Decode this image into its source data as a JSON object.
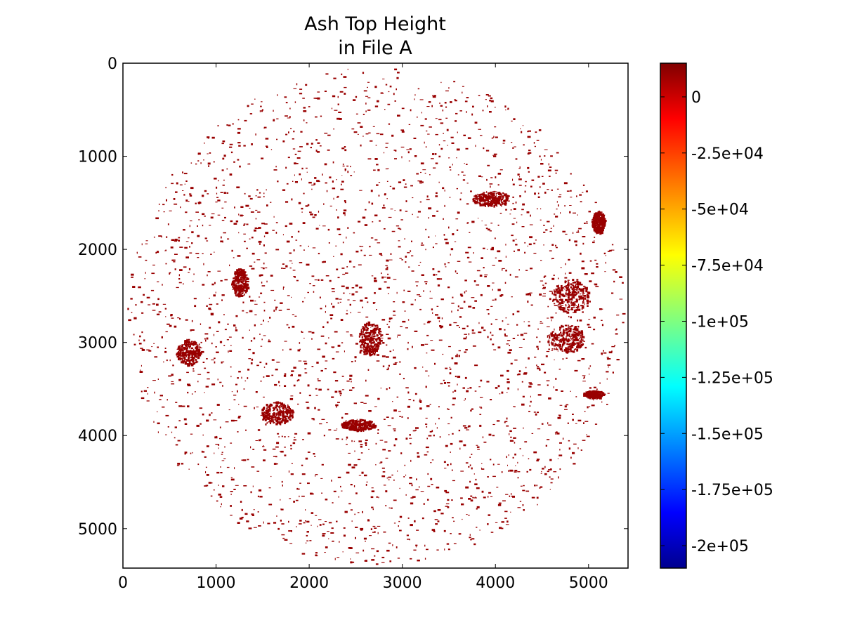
{
  "chart_data": {
    "type": "heatmap",
    "title": [
      "Ash Top Height",
      "in File A"
    ],
    "xlabel": "",
    "ylabel": "",
    "x_axis": {
      "ticks": [
        0,
        1000,
        2000,
        3000,
        4000,
        5000
      ],
      "tick_labels": [
        "0",
        "1000",
        "2000",
        "3000",
        "4000",
        "5000"
      ],
      "range": [
        0,
        5424
      ]
    },
    "y_axis": {
      "ticks": [
        0,
        1000,
        2000,
        3000,
        4000,
        5000
      ],
      "tick_labels": [
        "0",
        "1000",
        "2000",
        "3000",
        "4000",
        "5000"
      ],
      "range": [
        5424,
        0
      ],
      "inverted": true
    },
    "colorbar": {
      "colormap": "jet",
      "range": [
        -210000,
        15000
      ],
      "ticks": [
        0,
        -25000,
        -50000,
        -75000,
        -100000,
        -125000,
        -150000,
        -175000,
        -200000
      ],
      "tick_labels": [
        "0",
        "-2.5e+04",
        "-5e+04",
        "-7.5e+04",
        "-1e+05",
        "-1.25e+05",
        "-1.5e+05",
        "-1.75e+05",
        "-2e+05"
      ],
      "placement": "right"
    },
    "data_description_color": "#990000",
    "disk": {
      "center_x": 2712,
      "center_y": 2712,
      "radius": 2670
    },
    "regions": [
      {
        "x": 2650,
        "y": 2950,
        "rx": 120,
        "ry": 180
      },
      {
        "x": 2520,
        "y": 3880,
        "rx": 180,
        "ry": 60
      },
      {
        "x": 4800,
        "y": 2500,
        "rx": 200,
        "ry": 180
      },
      {
        "x": 4750,
        "y": 2950,
        "rx": 200,
        "ry": 150
      },
      {
        "x": 5050,
        "y": 3550,
        "rx": 110,
        "ry": 40
      },
      {
        "x": 3950,
        "y": 1450,
        "rx": 200,
        "ry": 80
      },
      {
        "x": 1250,
        "y": 2350,
        "rx": 90,
        "ry": 150
      },
      {
        "x": 5100,
        "y": 1700,
        "rx": 70,
        "ry": 120
      },
      {
        "x": 700,
        "y": 3100,
        "rx": 130,
        "ry": 140
      },
      {
        "x": 1650,
        "y": 3750,
        "rx": 180,
        "ry": 120
      }
    ]
  }
}
